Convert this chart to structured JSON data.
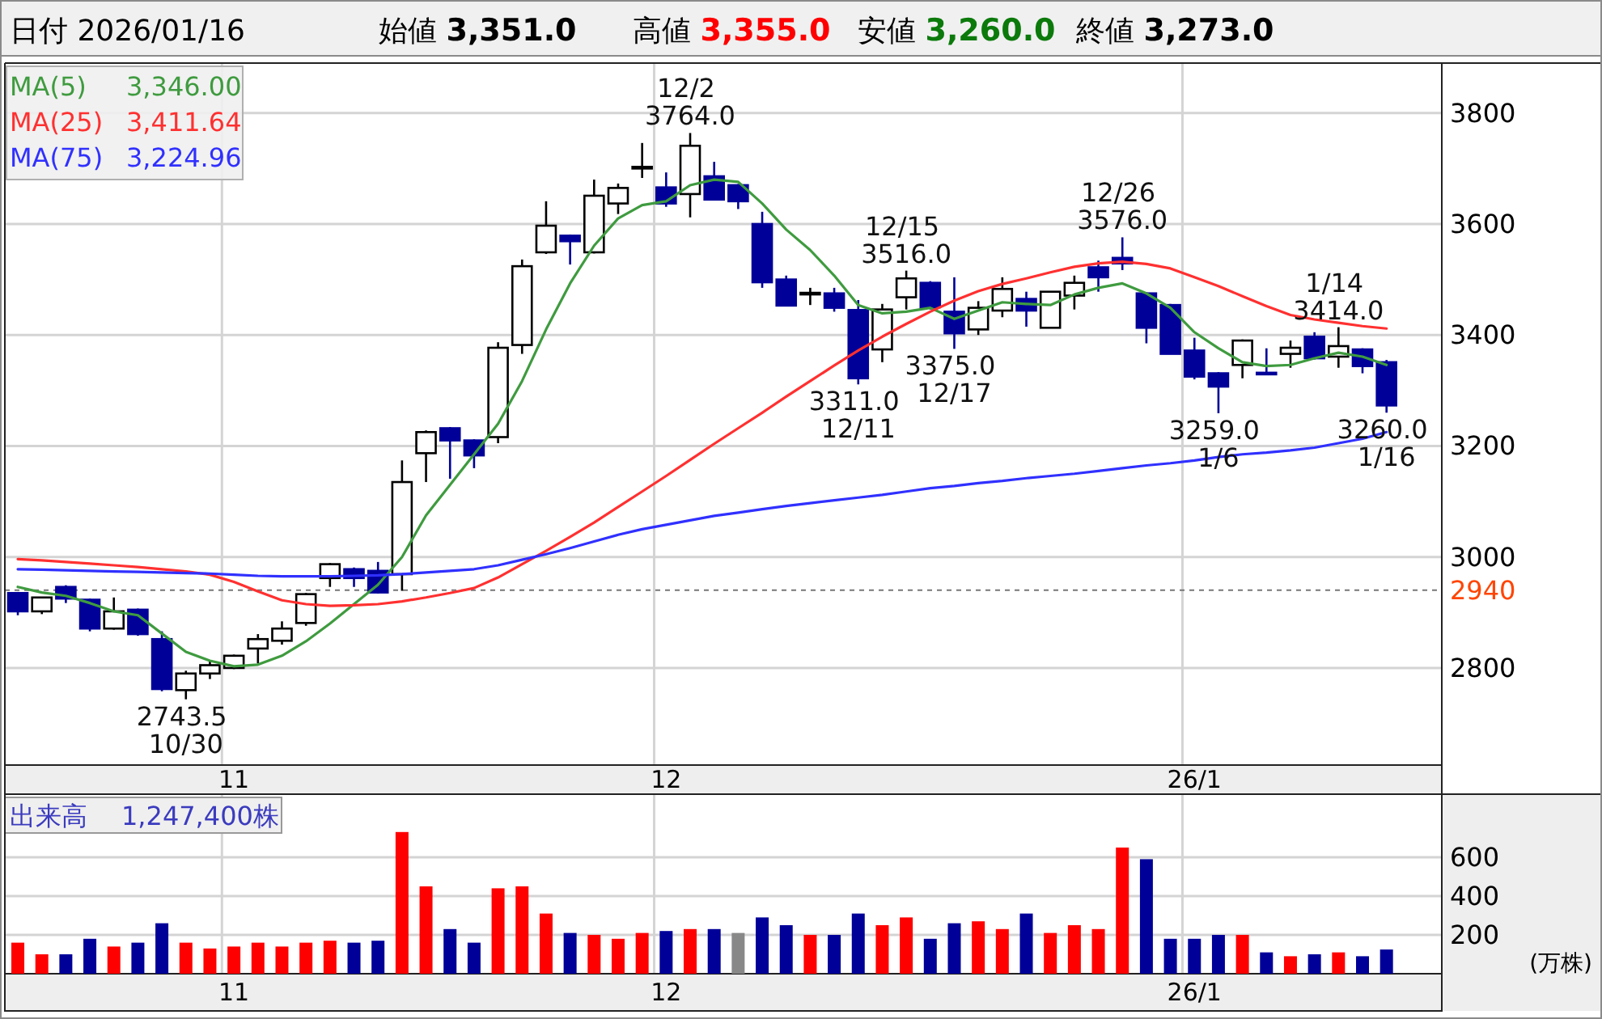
{
  "chart_data": [
    {
      "type": "other",
      "annotations": [
        "日付 2026/01/16",
        "始値 3,351.0",
        "高値 3,355.0",
        "安値 3,260.0",
        "終値 3,273.0"
      ]
    },
    {
      "type": "candlestick",
      "categories": [
        null,
        null,
        null,
        null,
        null,
        null,
        null,
        null,
        null,
        "11",
        null,
        null,
        null,
        null,
        null,
        null,
        null,
        null,
        null,
        null,
        null,
        null,
        null,
        null,
        null,
        null,
        null,
        "12",
        null,
        null,
        null,
        null,
        null,
        null,
        null,
        null,
        null,
        null,
        null,
        null,
        null,
        null,
        null,
        null,
        null,
        null,
        null,
        null,
        null,
        "26/1",
        null,
        null,
        null,
        null,
        null,
        null,
        null,
        null
      ],
      "ohlc": [
        [
          2935,
          2937,
          2895,
          2902
        ],
        [
          2902,
          2928,
          2897,
          2927
        ],
        [
          2946,
          2949,
          2917,
          2925
        ],
        [
          2923,
          2925,
          2866,
          2871
        ],
        [
          2871,
          2927,
          2869,
          2902
        ],
        [
          2905,
          2907,
          2858,
          2861
        ],
        [
          2852,
          2866,
          2758,
          2762
        ],
        [
          2760,
          2795,
          2743.5,
          2790
        ],
        [
          2790,
          2812,
          2780,
          2805
        ],
        [
          2800,
          2824,
          2798,
          2822
        ],
        [
          2835,
          2861,
          2808,
          2852
        ],
        [
          2849,
          2884,
          2842,
          2871
        ],
        [
          2881,
          2935,
          2876,
          2933
        ],
        [
          2962,
          2989,
          2946,
          2987
        ],
        [
          2978,
          2981,
          2946,
          2962
        ],
        [
          2975,
          2991,
          2934,
          2936
        ],
        [
          2969,
          3174,
          2939,
          3135
        ],
        [
          3187,
          3228,
          3135,
          3225
        ],
        [
          3232,
          3234,
          3141,
          3210
        ],
        [
          3210,
          3212,
          3160,
          3183
        ],
        [
          3216,
          3387,
          3205,
          3377
        ],
        [
          3382,
          3536,
          3366,
          3524
        ],
        [
          3549,
          3641,
          3546,
          3597
        ],
        [
          3579,
          3581,
          3527,
          3569
        ],
        [
          3549,
          3680,
          3547,
          3651
        ],
        [
          3637,
          3673,
          3618,
          3665
        ],
        [
          3700,
          3746,
          3683,
          3703
        ],
        [
          3666,
          3693,
          3631,
          3637
        ],
        [
          3654,
          3764,
          3612,
          3741
        ],
        [
          3686,
          3712,
          3644,
          3644
        ],
        [
          3670,
          3672,
          3627,
          3641
        ],
        [
          3600,
          3622,
          3485,
          3495
        ],
        [
          3500,
          3507,
          3453,
          3453
        ],
        [
          3474,
          3485,
          3454,
          3476
        ],
        [
          3475,
          3485,
          3442,
          3449
        ],
        [
          3445,
          3463,
          3311,
          3322
        ],
        [
          3374,
          3456,
          3351,
          3446
        ],
        [
          3468,
          3516,
          3446,
          3502
        ],
        [
          3494,
          3497,
          3446,
          3450
        ],
        [
          3442,
          3504,
          3375,
          3403
        ],
        [
          3410,
          3461,
          3400,
          3449
        ],
        [
          3444,
          3504,
          3432,
          3483
        ],
        [
          3465,
          3478,
          3415,
          3444
        ],
        [
          3413,
          3478,
          3412,
          3478
        ],
        [
          3471,
          3507,
          3446,
          3494
        ],
        [
          3522,
          3534,
          3478,
          3504
        ],
        [
          3539,
          3576,
          3517,
          3529
        ],
        [
          3475,
          3477,
          3385,
          3413
        ],
        [
          3454,
          3456,
          3366,
          3366
        ],
        [
          3372,
          3395,
          3320,
          3325
        ],
        [
          3331,
          3333,
          3259,
          3307
        ],
        [
          3346,
          3392,
          3322,
          3390
        ],
        [
          3332,
          3376,
          3330,
          3330
        ],
        [
          3366,
          3390,
          3341,
          3377
        ],
        [
          3397,
          3405,
          3356,
          3358
        ],
        [
          3361,
          3414,
          3341,
          3380
        ],
        [
          3374,
          3376,
          3331,
          3344
        ],
        [
          3351,
          3355,
          3260,
          3273
        ]
      ],
      "colors": [
        "#000099",
        "#ffffff",
        "#000099",
        "#000099",
        "#ffffff",
        "#000099",
        "#000099",
        "#ffffff",
        "#ffffff",
        "#ffffff",
        "#ffffff",
        "#ffffff",
        "#ffffff",
        "#ffffff",
        "#000099",
        "#000099",
        "#ffffff",
        "#ffffff",
        "#000099",
        "#000099",
        "#ffffff",
        "#ffffff",
        "#ffffff",
        "#000099",
        "#ffffff",
        "#ffffff",
        "#ffffff",
        "#000099",
        "#ffffff",
        "#000099",
        "#000099",
        "#000099",
        "#000099",
        "#ffffff",
        "#000099",
        "#000099",
        "#ffffff",
        "#ffffff",
        "#000099",
        "#000099",
        "#ffffff",
        "#ffffff",
        "#000099",
        "#ffffff",
        "#ffffff",
        "#000099",
        "#000099",
        "#000099",
        "#000099",
        "#000099",
        "#000099",
        "#ffffff",
        "#000099",
        "#ffffff",
        "#000099",
        "#ffffff",
        "#000099",
        "#000099"
      ],
      "series": [
        {
          "name": "MA(5) 3,346.00",
          "type": "line",
          "color": "#3f9b3f",
          "values": [
            2946,
            2936,
            2930,
            2917,
            2902,
            2895,
            2862,
            2829,
            2813,
            2803,
            2806,
            2822,
            2848,
            2880,
            2915,
            2950,
            3000,
            3075,
            3130,
            3185,
            3240,
            3317,
            3410,
            3493,
            3561,
            3610,
            3634,
            3641,
            3670,
            3680,
            3676,
            3637,
            3590,
            3553,
            3507,
            3454,
            3439,
            3442,
            3449,
            3429,
            3444,
            3459,
            3456,
            3454,
            3473,
            3485,
            3493,
            3475,
            3449,
            3405,
            3376,
            3351,
            3344,
            3346,
            3358,
            3368,
            3361,
            3346
          ]
        },
        {
          "name": "MA(25) 3,411.64",
          "type": "line",
          "color": "#ff3030",
          "values": [
            2996,
            2994,
            2991,
            2988,
            2985,
            2982,
            2978,
            2974,
            2968,
            2955,
            2938,
            2922,
            2915,
            2912,
            2913,
            2915,
            2920,
            2927,
            2935,
            2944,
            2963,
            2987,
            3011,
            3036,
            3062,
            3090,
            3118,
            3146,
            3175,
            3204,
            3232,
            3260,
            3289,
            3317,
            3345,
            3372,
            3397,
            3420,
            3442,
            3462,
            3479,
            3492,
            3502,
            3513,
            3523,
            3529,
            3532,
            3528,
            3520,
            3504,
            3488,
            3470,
            3452,
            3436,
            3428,
            3422,
            3416,
            3411.64
          ]
        },
        {
          "name": "MA(75) 3,224.96",
          "type": "line",
          "color": "#3030ff",
          "values": [
            2978,
            2977,
            2976,
            2975,
            2974,
            2973,
            2972,
            2971,
            2970,
            2968,
            2966,
            2965,
            2965,
            2965,
            2966,
            2967,
            2969,
            2972,
            2975,
            2978,
            2985,
            2995,
            3005,
            3016,
            3028,
            3040,
            3050,
            3058,
            3066,
            3074,
            3080,
            3086,
            3092,
            3097,
            3102,
            3107,
            3112,
            3118,
            3124,
            3128,
            3133,
            3137,
            3142,
            3146,
            3150,
            3155,
            3160,
            3165,
            3169,
            3174,
            3180,
            3185,
            3188,
            3192,
            3197,
            3205,
            3213,
            3224.96
          ]
        }
      ],
      "ylim": [
        2625,
        3890
      ],
      "yticks": [
        2800,
        3000,
        3200,
        3400,
        3600,
        3800
      ],
      "grid": true,
      "legend": "top left",
      "ref_lines": [
        {
          "axis": "y",
          "value": 2940,
          "label": "2940",
          "color": "#777777",
          "line_style": "dashed"
        }
      ],
      "annotations": [
        {
          "text": "2743.5\n10/30",
          "y": 2743.5
        },
        {
          "text": "12/2\n3764.0",
          "y": 3764
        },
        {
          "text": "3311.0\n12/11",
          "y": 3311
        },
        {
          "text": "12/15\n3516.0",
          "y": 3516
        },
        {
          "text": "3375.0\n12/17",
          "y": 3375
        },
        {
          "text": "12/26\n3576.0",
          "y": 3576
        },
        {
          "text": "3259.0\n1/6",
          "y": 3259
        },
        {
          "text": "1/14\n3414.0",
          "y": 3414
        },
        {
          "text": "3260.0\n1/16",
          "y": 3260
        }
      ]
    },
    {
      "type": "bar",
      "title": "出来高 1,247,400株",
      "ylabel": "(万株)",
      "categories": [
        null,
        null,
        null,
        null,
        null,
        null,
        null,
        null,
        null,
        "11",
        null,
        null,
        null,
        null,
        null,
        null,
        null,
        null,
        null,
        null,
        null,
        null,
        null,
        null,
        null,
        null,
        null,
        "12",
        null,
        null,
        null,
        null,
        null,
        null,
        null,
        null,
        null,
        null,
        null,
        null,
        null,
        null,
        null,
        null,
        null,
        null,
        null,
        null,
        null,
        "26/1",
        null,
        null,
        null,
        null,
        null,
        null,
        null,
        null
      ],
      "values": [
        160,
        100,
        100,
        180,
        140,
        160,
        260,
        160,
        130,
        140,
        160,
        140,
        160,
        170,
        160,
        170,
        730,
        450,
        230,
        160,
        440,
        450,
        310,
        210,
        200,
        180,
        210,
        220,
        230,
        230,
        210,
        290,
        250,
        200,
        200,
        310,
        250,
        290,
        180,
        260,
        270,
        230,
        310,
        210,
        250,
        230,
        650,
        590,
        180,
        180,
        200,
        200,
        110,
        90,
        100,
        110,
        90,
        124.74
      ],
      "colors": [
        "#ff0000",
        "#ff0000",
        "#000099",
        "#000099",
        "#ff0000",
        "#000099",
        "#000099",
        "#ff0000",
        "#ff0000",
        "#ff0000",
        "#ff0000",
        "#ff0000",
        "#ff0000",
        "#ff0000",
        "#000099",
        "#000099",
        "#ff0000",
        "#ff0000",
        "#000099",
        "#000099",
        "#ff0000",
        "#ff0000",
        "#ff0000",
        "#000099",
        "#ff0000",
        "#ff0000",
        "#ff0000",
        "#000099",
        "#ff0000",
        "#000099",
        "#888888",
        "#000099",
        "#000099",
        "#ff0000",
        "#000099",
        "#000099",
        "#ff0000",
        "#ff0000",
        "#000099",
        "#000099",
        "#ff0000",
        "#ff0000",
        "#000099",
        "#ff0000",
        "#ff0000",
        "#ff0000",
        "#ff0000",
        "#000099",
        "#000099",
        "#000099",
        "#000099",
        "#ff0000",
        "#000099",
        "#ff0000",
        "#000099",
        "#ff0000",
        "#000099",
        "#000099"
      ],
      "ylim": [
        0,
        925
      ],
      "yticks": [
        200,
        400,
        600
      ],
      "grid": true
    }
  ]
}
